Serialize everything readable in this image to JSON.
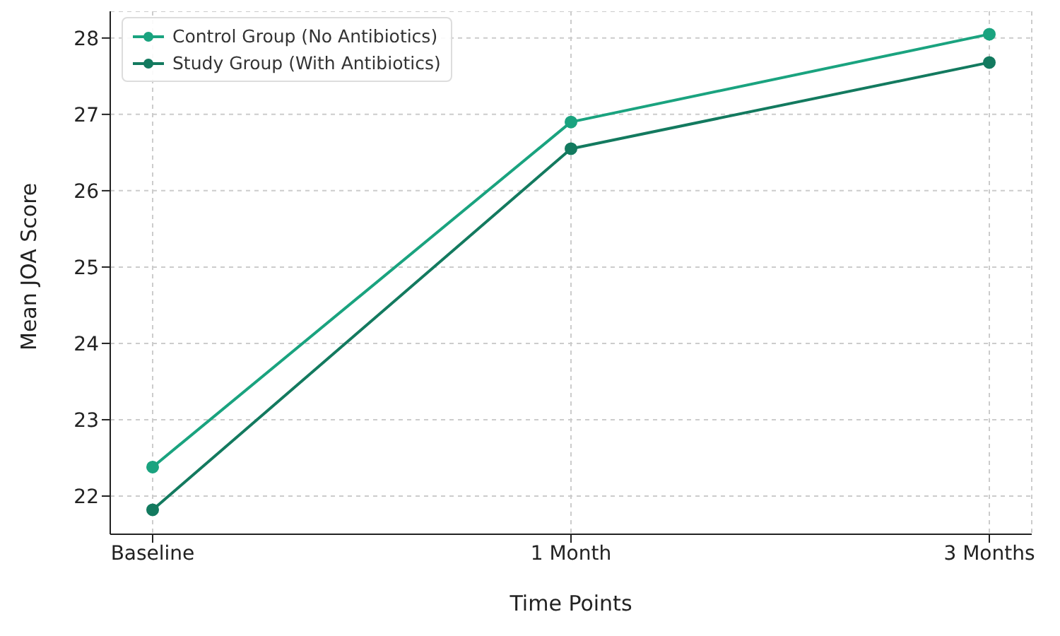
{
  "chart_data": {
    "type": "line",
    "xlabel": "Time Points",
    "ylabel": "Mean JOA Score",
    "categories": [
      "Baseline",
      "1 Month",
      "3 Months"
    ],
    "series": [
      {
        "name": "Control Group (No Antibiotics)",
        "color": "#1aa37f",
        "values": [
          22.38,
          26.9,
          28.05
        ]
      },
      {
        "name": "Study Group (With Antibiotics)",
        "color": "#137a5f",
        "values": [
          21.82,
          26.55,
          27.68
        ]
      }
    ],
    "ylim": [
      21.5,
      28.35
    ],
    "yticks": [
      22,
      23,
      24,
      25,
      26,
      27,
      28
    ],
    "grid": true,
    "legend": "top left",
    "marker": "circle",
    "line_style": "solid"
  }
}
